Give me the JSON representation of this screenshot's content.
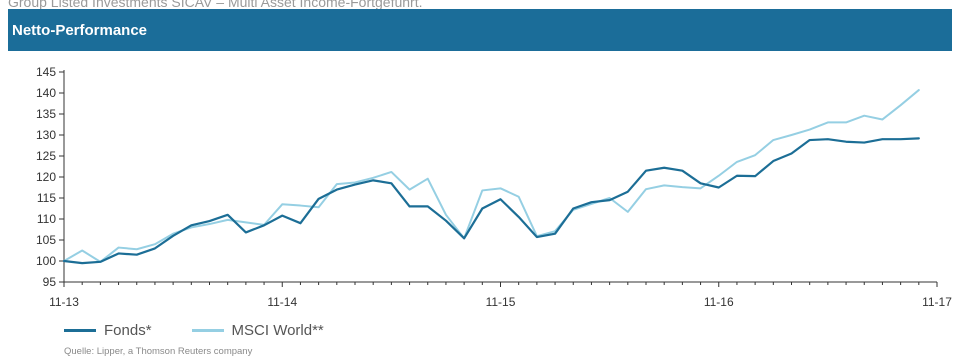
{
  "top_note": "Group Listed Investments SICAV – Multi Asset Income-Fortgeführt.",
  "header": {
    "title": "Netto-Performance"
  },
  "source": "Quelle: Lipper, a Thomson Reuters company",
  "colors": {
    "header_bg": "#1b6d99",
    "fonds": "#1c6e96",
    "msci": "#95cfe3"
  },
  "chart_data": {
    "type": "line",
    "title": "Netto-Performance",
    "xlabel": "",
    "ylabel": "",
    "ylim": [
      95,
      145
    ],
    "yticks": [
      95,
      100,
      105,
      110,
      115,
      120,
      125,
      130,
      135,
      140,
      145
    ],
    "xlim": [
      0,
      48
    ],
    "xticks": [
      {
        "at": 0,
        "label": "11-13"
      },
      {
        "at": 12,
        "label": "11-14"
      },
      {
        "at": 24,
        "label": "11-15"
      },
      {
        "at": 36,
        "label": "11-16"
      },
      {
        "at": 48,
        "label": "11-17"
      }
    ],
    "grid": false,
    "legend_position": "bottom-left",
    "series": [
      {
        "name": "Fonds*",
        "color": "#1c6e96",
        "values": [
          100,
          99.5,
          99.8,
          101.8,
          101.5,
          103,
          106,
          108.5,
          109.5,
          111,
          106.8,
          108.5,
          110.8,
          109,
          114.8,
          117,
          118.2,
          119.2,
          118.5,
          113,
          113,
          109.6,
          105.4,
          112.5,
          114.7,
          110.5,
          105.7,
          106.5,
          112.5,
          114,
          114.5,
          116.5,
          121.5,
          122.2,
          121.5,
          118.5,
          117.5,
          120.3,
          120.2,
          123.8,
          125.6,
          128.8,
          129,
          128.4,
          128.2,
          129,
          129,
          129.2
        ]
      },
      {
        "name": "MSCI World**",
        "color": "#95cfe3",
        "values": [
          100,
          102.5,
          99.8,
          103.2,
          102.8,
          104,
          106.5,
          108,
          108.8,
          109.8,
          109.2,
          108.6,
          113.5,
          113.2,
          112.8,
          118.3,
          118.7,
          119.8,
          121.2,
          117,
          119.6,
          111,
          105.4,
          116.8,
          117.3,
          115.3,
          105.9,
          107.1,
          112.2,
          113.6,
          115,
          111.7,
          117.1,
          118,
          117.6,
          117.3,
          120.3,
          123.6,
          125.2,
          128.8,
          130,
          131.3,
          133,
          133,
          134.6,
          133.7,
          137.1,
          140.7
        ]
      }
    ]
  }
}
